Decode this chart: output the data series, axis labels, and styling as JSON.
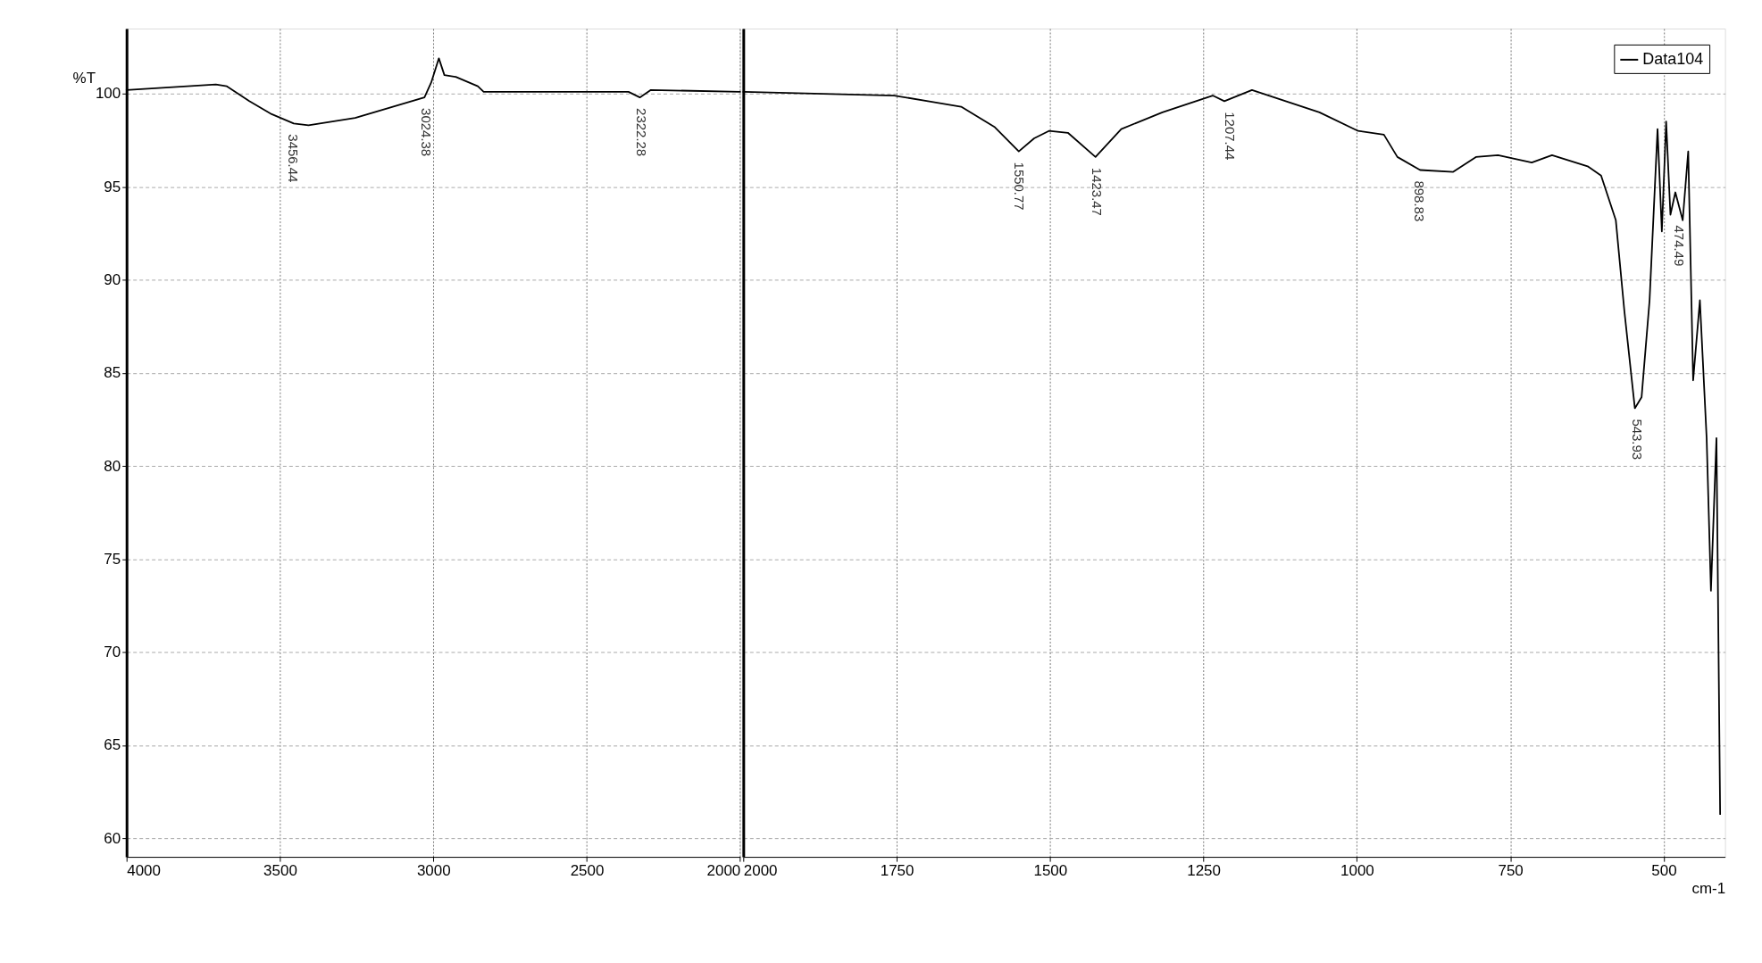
{
  "chart_data": [
    {
      "type": "line",
      "ylabel": "%T",
      "x": [
        4000,
        3709,
        3673,
        3600,
        3527,
        3455,
        3407,
        3255,
        3029,
        3007,
        2982,
        2964,
        2927,
        2855,
        2836,
        2527,
        2364,
        2327,
        2291,
        2000
      ],
      "series": [
        {
          "color": "#000000",
          "values": [
            100.2,
            100.5,
            100.4,
            99.6,
            98.9,
            98.4,
            98.3,
            98.7,
            99.8,
            100.6,
            101.9,
            101.0,
            100.9,
            100.4,
            100.1,
            100.1,
            100.1,
            99.8,
            100.2,
            100.1
          ]
        }
      ],
      "xlim": [
        4000,
        2000
      ],
      "xticks": [
        4000,
        3500,
        3000,
        2500,
        2000
      ],
      "ylim": [
        59,
        103.5
      ],
      "yticks": [
        60,
        65,
        70,
        75,
        80,
        85,
        90,
        95,
        100
      ],
      "grid": true,
      "marker": "none",
      "line_style": "solid",
      "annotations": [
        {
          "text": "3456.44",
          "x": 3456.44,
          "y": 98.4
        },
        {
          "text": "3024.38",
          "x": 3024.38,
          "y": 99.8
        },
        {
          "text": "2322.28",
          "x": 2322.28,
          "y": 99.8
        }
      ]
    },
    {
      "type": "line",
      "xlabel": "cm-1",
      "x": [
        2000,
        1754,
        1699,
        1645,
        1590,
        1551,
        1526,
        1502,
        1471,
        1426,
        1384,
        1317,
        1235,
        1216,
        1171,
        1116,
        1061,
        998,
        956,
        934,
        897,
        843,
        806,
        770,
        715,
        682,
        624,
        602,
        578,
        564,
        547,
        536,
        523,
        510,
        503,
        496,
        489,
        481,
        469,
        460,
        452,
        441,
        430,
        423,
        414,
        408
      ],
      "series": [
        {
          "name": "Data104",
          "color": "#000000",
          "values": [
            100.1,
            99.9,
            99.6,
            99.3,
            98.2,
            96.9,
            97.6,
            98.0,
            97.9,
            96.6,
            98.1,
            99.0,
            99.9,
            99.6,
            100.2,
            99.6,
            99.0,
            98.0,
            97.8,
            96.6,
            95.9,
            95.8,
            96.6,
            96.7,
            96.3,
            96.7,
            96.1,
            95.6,
            93.2,
            88.3,
            83.1,
            83.7,
            88.9,
            98.1,
            92.6,
            98.5,
            93.5,
            94.7,
            93.2,
            96.9,
            84.6,
            88.9,
            81.5,
            73.3,
            81.5,
            61.3
          ]
        }
      ],
      "xlim": [
        2000,
        400
      ],
      "xticks": [
        2000,
        1750,
        1500,
        1250,
        1000,
        750,
        500
      ],
      "ylim": [
        59,
        103.5
      ],
      "yticks": [
        60,
        65,
        70,
        75,
        80,
        85,
        90,
        95,
        100
      ],
      "tick_labels": "x",
      "grid": true,
      "legend": "top right",
      "marker": "none",
      "line_style": "solid",
      "annotations": [
        {
          "text": "1550.77",
          "x": 1550.77,
          "y": 96.9
        },
        {
          "text": "1423.47",
          "x": 1423.47,
          "y": 96.6
        },
        {
          "text": "1207.44",
          "x": 1207.44,
          "y": 99.6
        },
        {
          "text": "898.83",
          "x": 898.83,
          "y": 95.9
        },
        {
          "text": "543.93",
          "x": 543.93,
          "y": 83.1
        },
        {
          "text": "474.49",
          "x": 474.49,
          "y": 93.5
        }
      ]
    }
  ]
}
